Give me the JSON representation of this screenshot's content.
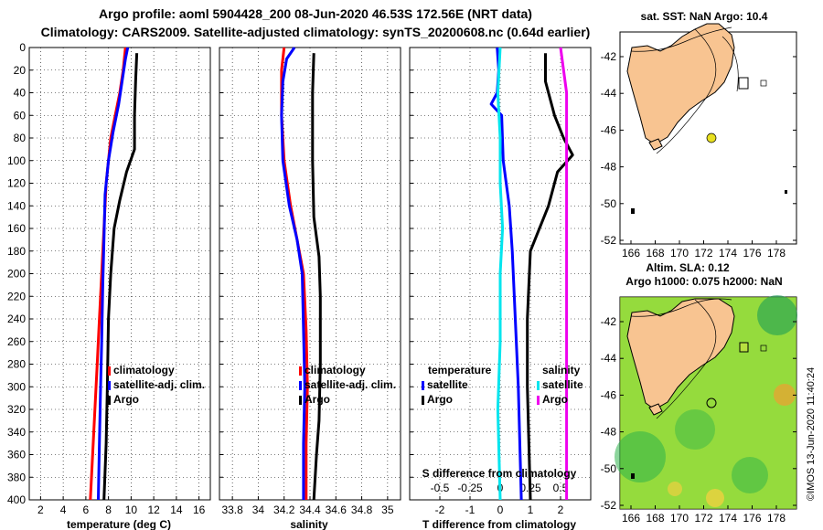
{
  "title_line1": "Argo profile: aoml 5904428_200 08-Jun-2020 46.53S 172.56E (NRT data)",
  "title_line2": "Climatology: CARS2009. Satellite-adjusted climatology: synTS_20200608.nc (0.64d earlier)",
  "colors": {
    "climatology": "#ff0000",
    "satellite": "#0000ff",
    "argo": "#000000",
    "sat_diff": "#00e5ee",
    "sal_diff": "#ee00ee",
    "land": "#f8c491",
    "sst_dot": "#e8e020"
  },
  "chart_data": [
    {
      "id": "temperature",
      "type": "line",
      "xlabel": "temperature (deg C)",
      "ylabel": "",
      "xlim": [
        1,
        17
      ],
      "ylim": [
        400,
        0
      ],
      "xticks": [
        2,
        4,
        6,
        8,
        10,
        12,
        14,
        16
      ],
      "yticks": [
        0,
        20,
        40,
        60,
        80,
        100,
        120,
        140,
        160,
        180,
        200,
        220,
        240,
        260,
        280,
        300,
        320,
        340,
        360,
        380,
        400
      ],
      "legend": {
        "position": "bottom-right",
        "entries": [
          "climatology",
          "satellite-adj. clim.",
          "Argo"
        ]
      },
      "series": [
        {
          "name": "climatology",
          "color": "#ff0000",
          "points": [
            [
              9.5,
              0
            ],
            [
              9.3,
              20
            ],
            [
              9.0,
              40
            ],
            [
              8.6,
              60
            ],
            [
              8.2,
              80
            ],
            [
              8.0,
              100
            ],
            [
              7.8,
              120
            ],
            [
              7.6,
              160
            ],
            [
              7.4,
              200
            ],
            [
              7.2,
              240
            ],
            [
              7.0,
              280
            ],
            [
              6.8,
              320
            ],
            [
              6.6,
              360
            ],
            [
              6.4,
              400
            ]
          ]
        },
        {
          "name": "satellite-adj. clim.",
          "color": "#0000ff",
          "points": [
            [
              9.7,
              0
            ],
            [
              9.5,
              10
            ],
            [
              9.2,
              30
            ],
            [
              8.9,
              50
            ],
            [
              8.4,
              75
            ],
            [
              8.0,
              100
            ],
            [
              7.7,
              130
            ],
            [
              7.6,
              170
            ],
            [
              7.5,
              210
            ],
            [
              7.4,
              260
            ],
            [
              7.3,
              300
            ],
            [
              7.2,
              350
            ],
            [
              7.1,
              400
            ]
          ]
        },
        {
          "name": "Argo",
          "color": "#000000",
          "points": [
            [
              10.5,
              5
            ],
            [
              10.4,
              30
            ],
            [
              10.3,
              60
            ],
            [
              10.3,
              90
            ],
            [
              9.6,
              110
            ],
            [
              9.0,
              135
            ],
            [
              8.5,
              160
            ],
            [
              8.2,
              200
            ],
            [
              8.0,
              240
            ],
            [
              7.9,
              300
            ],
            [
              7.8,
              350
            ],
            [
              7.6,
              400
            ]
          ]
        }
      ]
    },
    {
      "id": "salinity",
      "type": "line",
      "xlabel": "salinity",
      "ylabel": "",
      "xlim": [
        33.7,
        35.1
      ],
      "ylim": [
        400,
        0
      ],
      "xticks": [
        33.8,
        34,
        34.2,
        34.4,
        34.6,
        34.8,
        35
      ],
      "xticklabels": [
        "33.8",
        "34",
        "34.2",
        "34.4",
        "34.6",
        "34.8",
        "35"
      ],
      "legend": {
        "position": "bottom-right",
        "entries": [
          "climatology",
          "satellite-adj. clim.",
          "Argo"
        ]
      },
      "series": [
        {
          "name": "climatology",
          "color": "#ff0000",
          "points": [
            [
              34.2,
              0
            ],
            [
              34.18,
              20
            ],
            [
              34.18,
              60
            ],
            [
              34.2,
              100
            ],
            [
              34.25,
              140
            ],
            [
              34.3,
              170
            ],
            [
              34.35,
              200
            ],
            [
              34.37,
              250
            ],
            [
              34.38,
              300
            ],
            [
              34.37,
              350
            ],
            [
              34.37,
              400
            ]
          ]
        },
        {
          "name": "satellite-adj. clim.",
          "color": "#0000ff",
          "points": [
            [
              34.28,
              0
            ],
            [
              34.22,
              10
            ],
            [
              34.19,
              30
            ],
            [
              34.18,
              60
            ],
            [
              34.19,
              100
            ],
            [
              34.24,
              140
            ],
            [
              34.3,
              170
            ],
            [
              34.34,
              200
            ],
            [
              34.35,
              250
            ],
            [
              34.36,
              300
            ],
            [
              34.35,
              350
            ],
            [
              34.35,
              400
            ]
          ]
        },
        {
          "name": "Argo",
          "color": "#000000",
          "points": [
            [
              34.43,
              5
            ],
            [
              34.42,
              40
            ],
            [
              34.42,
              80
            ],
            [
              34.42,
              100
            ],
            [
              34.43,
              150
            ],
            [
              34.47,
              185
            ],
            [
              34.48,
              220
            ],
            [
              34.48,
              280
            ],
            [
              34.47,
              330
            ],
            [
              34.45,
              360
            ],
            [
              34.43,
              400
            ]
          ]
        }
      ]
    },
    {
      "id": "difference",
      "type": "line",
      "xlabel": "T difference from climatology",
      "x2label": "S difference from climatology",
      "xlim": [
        -3,
        3
      ],
      "ylim": [
        400,
        0
      ],
      "xticks": [
        -2,
        -1,
        0,
        1,
        2
      ],
      "xticklabels": [
        "-2",
        "-1",
        "0",
        "1",
        "2"
      ],
      "x2ticks": [
        -0.5,
        -0.25,
        0,
        0.25,
        0.5
      ],
      "x2ticklabels": [
        "-0.5",
        "-0.25",
        "0",
        "0.25",
        "0.5"
      ],
      "legend_temperature": {
        "title": "temperature",
        "entries": [
          "satellite",
          "Argo"
        ]
      },
      "legend_salinity": {
        "title": "salinity",
        "entries": [
          "satellite",
          "Argo"
        ]
      },
      "series": [
        {
          "name": "T satellite",
          "color": "#0000ff",
          "points": [
            [
              -0.1,
              0
            ],
            [
              -0.05,
              20
            ],
            [
              -0.1,
              40
            ],
            [
              -0.3,
              50
            ],
            [
              0.05,
              60
            ],
            [
              0.1,
              100
            ],
            [
              0.3,
              140
            ],
            [
              0.4,
              180
            ],
            [
              0.5,
              240
            ],
            [
              0.6,
              300
            ],
            [
              0.7,
              400
            ]
          ]
        },
        {
          "name": "T Argo",
          "color": "#000000",
          "points": [
            [
              1.5,
              5
            ],
            [
              1.5,
              30
            ],
            [
              1.8,
              60
            ],
            [
              2.1,
              80
            ],
            [
              2.4,
              95
            ],
            [
              1.9,
              110
            ],
            [
              1.6,
              140
            ],
            [
              1.0,
              180
            ],
            [
              0.9,
              240
            ],
            [
              0.9,
              300
            ],
            [
              1.0,
              400
            ]
          ]
        },
        {
          "name": "S satellite",
          "color": "#00e5ee",
          "points": [
            [
              0.0,
              0
            ],
            [
              -0.02,
              40
            ],
            [
              0.0,
              80
            ],
            [
              0.0,
              120
            ],
            [
              0.02,
              160
            ],
            [
              0.0,
              200
            ],
            [
              0.0,
              260
            ],
            [
              -0.02,
              320
            ],
            [
              0.0,
              400
            ]
          ]
        },
        {
          "name": "S Argo",
          "color": "#ee00ee",
          "points": [
            [
              0.5,
              0
            ],
            [
              0.55,
              40
            ],
            [
              0.55,
              100
            ],
            [
              0.55,
              160
            ],
            [
              0.55,
              220
            ],
            [
              0.55,
              300
            ],
            [
              0.55,
              400
            ]
          ]
        }
      ]
    }
  ],
  "map_top": {
    "title": "sat. SST: NaN Argo: 10.4",
    "lat_ticks": [
      "-42",
      "-44",
      "-46",
      "-48",
      "-50",
      "-52"
    ],
    "lon_ticks": [
      "166",
      "168",
      "170",
      "172",
      "174",
      "176",
      "178"
    ]
  },
  "map_bottom": {
    "title_line1": "Altim. SLA: 0.12",
    "title_line2": "Argo h1000: 0.075 h2000: NaN",
    "lat_ticks": [
      "-42",
      "-44",
      "-46",
      "-48",
      "-50",
      "-52"
    ],
    "lon_ticks": [
      "166",
      "168",
      "170",
      "172",
      "174",
      "176",
      "178"
    ]
  },
  "credit": "©IMOS 13-Jun-2020 11:40:24"
}
